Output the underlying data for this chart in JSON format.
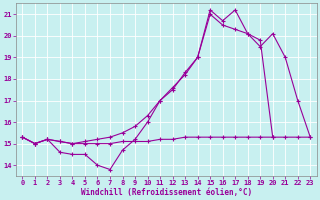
{
  "bg_color": "#c8f0f0",
  "line_color": "#990099",
  "xlabel": "Windchill (Refroidissement éolien,°C)",
  "xlim": [
    -0.5,
    23.5
  ],
  "ylim": [
    13.5,
    21.5
  ],
  "x_ticks": [
    0,
    1,
    2,
    3,
    4,
    5,
    6,
    7,
    8,
    9,
    10,
    11,
    12,
    13,
    14,
    15,
    16,
    17,
    18,
    19,
    20,
    21,
    22,
    23
  ],
  "y_ticks": [
    14,
    15,
    16,
    17,
    18,
    19,
    20,
    21
  ],
  "line1_y": [
    15.3,
    15.0,
    15.2,
    14.6,
    14.5,
    14.5,
    14.0,
    13.8,
    14.7,
    15.2,
    16.0,
    17.0,
    17.5,
    18.3,
    19.0,
    21.2,
    20.7,
    21.2,
    20.1,
    19.8,
    15.3,
    null,
    null,
    null
  ],
  "line2_y": [
    15.3,
    15.0,
    15.2,
    15.1,
    15.0,
    15.0,
    15.0,
    15.0,
    15.1,
    15.1,
    15.1,
    15.2,
    15.2,
    15.3,
    15.3,
    15.3,
    15.3,
    15.3,
    15.3,
    15.3,
    15.3,
    15.3,
    15.3,
    15.3
  ],
  "line3_y": [
    15.3,
    15.0,
    15.2,
    15.1,
    15.0,
    15.1,
    15.2,
    15.3,
    15.5,
    15.8,
    16.3,
    17.0,
    17.6,
    18.2,
    19.0,
    21.0,
    20.5,
    20.3,
    20.1,
    19.5,
    20.1,
    19.0,
    17.0,
    15.3
  ]
}
